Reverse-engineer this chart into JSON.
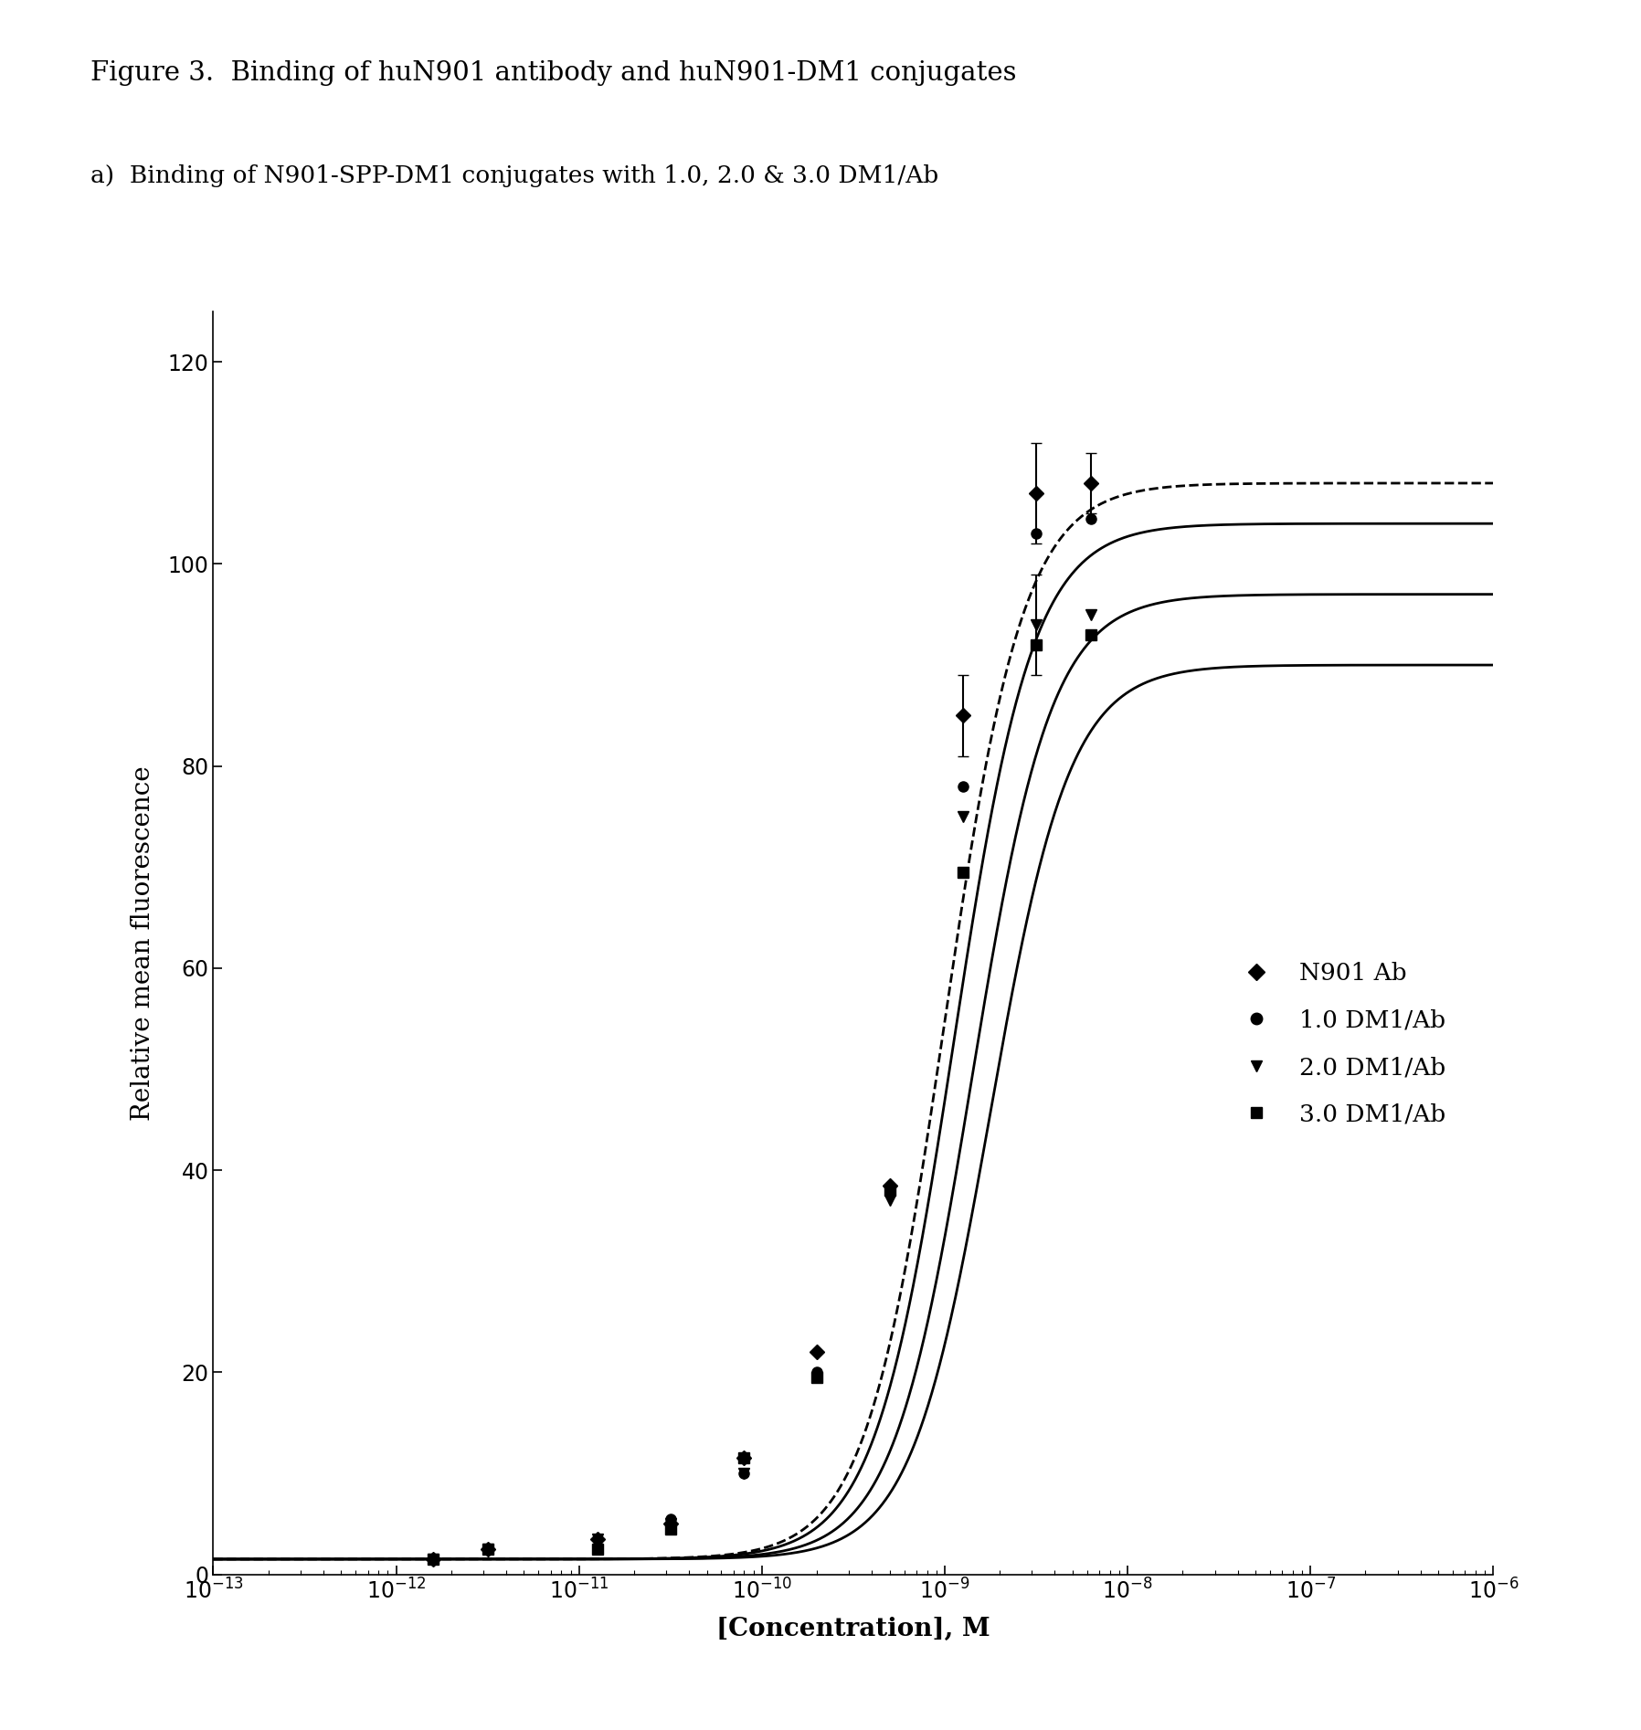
{
  "title": "Figure 3.  Binding of huN901 antibody and huN901-DM1 conjugates",
  "subtitle": "a)  Binding of N901-SPP-DM1 conjugates with 1.0, 2.0 & 3.0 DM1/Ab",
  "xlabel": "[Concentration], M",
  "ylabel": "Relative mean fluorescence",
  "title_fontsize": 21,
  "subtitle_fontsize": 19,
  "label_fontsize": 20,
  "tick_fontsize": 17,
  "legend_fontsize": 19,
  "xmin": -13,
  "xmax": -6,
  "ymin": 0,
  "ymax": 125,
  "yticks": [
    0,
    20,
    40,
    60,
    80,
    100,
    120
  ],
  "series": [
    {
      "label": "N901 Ab",
      "marker": "D",
      "color": "#000000",
      "linestyle": "--",
      "linewidth": 2.0,
      "markersize": 8,
      "top": 108,
      "bottom": 1.5,
      "ec50_log": -9.0,
      "hill": 2.0,
      "data_x_log": [
        -11.8,
        -11.5,
        -10.9,
        -10.5,
        -10.1,
        -9.7,
        -9.3,
        -8.9,
        -8.5,
        -8.2
      ],
      "data_y": [
        1.5,
        2.5,
        3.5,
        5.0,
        11.5,
        22.0,
        38.5,
        85.0,
        107.0,
        108.0
      ],
      "yerr": [
        0,
        0,
        0,
        0,
        0,
        0,
        0,
        4.0,
        5.0,
        3.0
      ]
    },
    {
      "label": "1.0 DM1/Ab",
      "marker": "o",
      "color": "#000000",
      "linestyle": "-",
      "linewidth": 2.0,
      "markersize": 8,
      "top": 104,
      "bottom": 1.5,
      "ec50_log": -8.95,
      "hill": 2.0,
      "data_x_log": [
        -11.8,
        -11.5,
        -10.9,
        -10.5,
        -10.1,
        -9.7,
        -9.3,
        -8.9,
        -8.5,
        -8.2
      ],
      "data_y": [
        1.5,
        2.5,
        3.5,
        5.5,
        10.0,
        20.0,
        38.0,
        78.0,
        103.0,
        104.5
      ],
      "yerr": [
        0,
        0,
        0,
        0,
        0,
        0,
        0,
        0,
        0,
        0
      ]
    },
    {
      "label": "2.0 DM1/Ab",
      "marker": "v",
      "color": "#000000",
      "linestyle": "-",
      "linewidth": 2.0,
      "markersize": 8,
      "top": 97,
      "bottom": 1.5,
      "ec50_log": -8.85,
      "hill": 2.0,
      "data_x_log": [
        -11.8,
        -11.5,
        -10.9,
        -10.5,
        -10.1,
        -9.7,
        -9.3,
        -8.9,
        -8.5,
        -8.2
      ],
      "data_y": [
        1.5,
        2.5,
        3.5,
        5.0,
        10.0,
        19.5,
        37.0,
        75.0,
        94.0,
        95.0
      ],
      "yerr": [
        0,
        0,
        0,
        0,
        0,
        0,
        0,
        0,
        5.0,
        0
      ]
    },
    {
      "label": "3.0 DM1/Ab",
      "marker": "s",
      "color": "#000000",
      "linestyle": "-",
      "linewidth": 2.0,
      "markersize": 8,
      "top": 90,
      "bottom": 1.5,
      "ec50_log": -8.75,
      "hill": 2.0,
      "data_x_log": [
        -11.8,
        -11.5,
        -10.9,
        -10.5,
        -10.1,
        -9.7,
        -9.3,
        -8.9,
        -8.5,
        -8.2
      ],
      "data_y": [
        1.5,
        2.5,
        2.5,
        4.5,
        11.5,
        19.5,
        38.0,
        69.5,
        92.0,
        93.0
      ],
      "yerr": [
        0,
        0,
        0,
        0,
        0,
        0,
        0,
        0,
        0,
        0
      ]
    }
  ],
  "background_color": "#ffffff"
}
